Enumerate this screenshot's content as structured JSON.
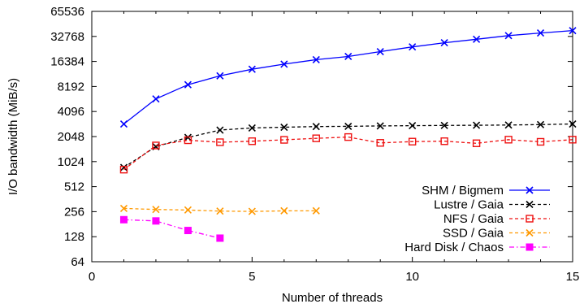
{
  "chart_data": {
    "type": "line",
    "xlabel": "Number of threads",
    "ylabel": "I/O bandwidth (MiB/s)",
    "xlim": [
      0,
      15
    ],
    "ylim": [
      64,
      65536
    ],
    "yscale": "log2",
    "xticks": [
      0,
      5,
      10,
      15
    ],
    "yticks": [
      64,
      128,
      256,
      512,
      1024,
      2048,
      4096,
      8192,
      16384,
      32768,
      65536
    ],
    "grid": false,
    "legend_position": "bottom-right",
    "series": [
      {
        "name": "SHM / Bigmem",
        "color": "#0000ff",
        "dash": "solid",
        "marker": "x",
        "x": [
          1,
          2,
          3,
          4,
          5,
          6,
          7,
          8,
          9,
          10,
          11,
          12,
          13,
          14,
          15
        ],
        "y": [
          2900,
          5800,
          8600,
          11000,
          13200,
          15200,
          17200,
          18800,
          21500,
          24500,
          27500,
          30300,
          33500,
          36000,
          38500
        ]
      },
      {
        "name": "Lustre / Gaia",
        "color": "#000000",
        "dash": "dashed",
        "marker": "x",
        "x": [
          1,
          2,
          3,
          4,
          5,
          6,
          7,
          8,
          9,
          10,
          11,
          12,
          13,
          14,
          15
        ],
        "y": [
          870,
          1550,
          2000,
          2450,
          2600,
          2650,
          2700,
          2720,
          2750,
          2770,
          2790,
          2800,
          2820,
          2850,
          2900
        ]
      },
      {
        "name": "NFS / Gaia",
        "color": "#ee1111",
        "dash": "dashed",
        "marker": "open-square",
        "x": [
          1,
          2,
          3,
          4,
          5,
          6,
          7,
          8,
          9,
          10,
          11,
          12,
          13,
          14,
          15
        ],
        "y": [
          820,
          1600,
          1850,
          1750,
          1800,
          1870,
          1950,
          2020,
          1720,
          1780,
          1800,
          1700,
          1880,
          1770,
          1880
        ]
      },
      {
        "name": "SSD / Gaia",
        "color": "#ff9900",
        "dash": "dashed",
        "marker": "x",
        "x": [
          1,
          2,
          3,
          4,
          5,
          6,
          7
        ],
        "y": [
          280,
          272,
          268,
          260,
          258,
          262,
          262
        ]
      },
      {
        "name": "Hard Disk / Chaos",
        "color": "#ff00ff",
        "dash": "dash-dot",
        "marker": "filled-square",
        "x": [
          1,
          2,
          3,
          4
        ],
        "y": [
          205,
          198,
          152,
          123
        ]
      }
    ]
  }
}
